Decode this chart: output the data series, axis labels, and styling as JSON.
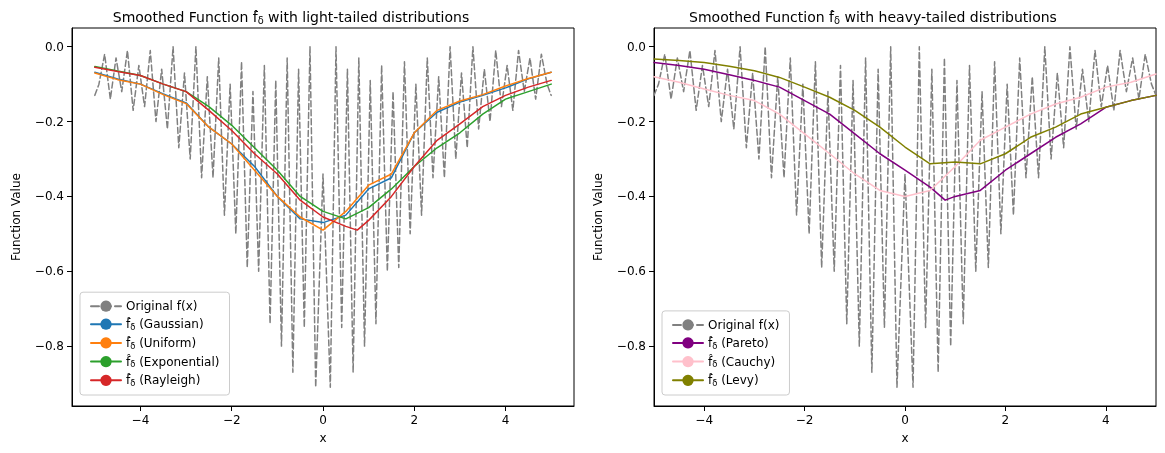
{
  "chart_data": [
    {
      "type": "line",
      "title": "Smoothed Function f̂$_{δ}$ with light-tailed distributions",
      "xlabel": "x",
      "ylabel": "Function Value",
      "xlim": [
        -5.5,
        5.5
      ],
      "ylim": [
        -0.96,
        0.05
      ],
      "xticks": [
        {
          "value": -4,
          "label": "−4"
        },
        {
          "value": -2,
          "label": "−2"
        },
        {
          "value": 0,
          "label": "0"
        },
        {
          "value": 2,
          "label": "2"
        },
        {
          "value": 4,
          "label": "4"
        }
      ],
      "yticks": [
        {
          "value": -0.8,
          "label": "−0.8"
        },
        {
          "value": -0.6,
          "label": "−0.6"
        },
        {
          "value": -0.4,
          "label": "−0.4"
        },
        {
          "value": -0.2,
          "label": "−0.2"
        },
        {
          "value": 0,
          "label": "0.0"
        }
      ],
      "legend": "bottom left",
      "series": [
        {
          "name": "Original f(x)",
          "color": "#808080",
          "line_style": "dashed",
          "x": [
            -5.0,
            -4.91,
            -4.785,
            -4.66,
            -4.535,
            -4.41,
            -4.285,
            -4.16,
            -4.035,
            -3.91,
            -3.785,
            -3.66,
            -3.535,
            -3.41,
            -3.285,
            -3.16,
            -3.035,
            -2.91,
            -2.785,
            -2.66,
            -2.535,
            -2.41,
            -2.285,
            -2.16,
            -2.035,
            -1.91,
            -1.785,
            -1.66,
            -1.535,
            -1.41,
            -1.285,
            -1.16,
            -1.035,
            -0.91,
            -0.785,
            -0.66,
            -0.535,
            -0.41,
            -0.285,
            -0.16,
            0,
            0.16,
            0.285,
            0.41,
            0.535,
            0.66,
            0.785,
            0.91,
            1.035,
            1.16,
            1.285,
            1.41,
            1.535,
            1.66,
            1.785,
            1.91,
            2.035,
            2.16,
            2.285,
            2.41,
            2.535,
            2.66,
            2.785,
            2.91,
            3.035,
            3.16,
            3.285,
            3.41,
            3.535,
            3.66,
            3.785,
            3.91,
            4.035,
            4.16,
            4.285,
            4.41,
            4.535,
            4.66,
            4.785,
            4.91,
            5.0
          ],
          "values": [
            -0.13,
            -0.1,
            -0.02,
            -0.14,
            -0.03,
            -0.12,
            -0.01,
            -0.17,
            -0.05,
            -0.16,
            -0.01,
            -0.2,
            -0.06,
            -0.22,
            0,
            -0.27,
            -0.07,
            -0.3,
            0,
            -0.35,
            -0.08,
            -0.35,
            -0.03,
            -0.45,
            -0.1,
            -0.5,
            -0.04,
            -0.59,
            -0.12,
            -0.6,
            -0.05,
            -0.74,
            -0.09,
            -0.8,
            -0.03,
            -0.87,
            -0.06,
            -0.75,
            0,
            -0.91,
            -0.34,
            -0.91,
            0,
            -0.75,
            -0.06,
            -0.87,
            -0.03,
            -0.8,
            -0.09,
            -0.74,
            -0.05,
            -0.6,
            -0.12,
            -0.59,
            -0.04,
            -0.5,
            -0.1,
            -0.45,
            -0.03,
            -0.35,
            -0.08,
            -0.35,
            0,
            -0.3,
            -0.07,
            -0.27,
            0,
            -0.22,
            -0.06,
            -0.2,
            -0.01,
            -0.16,
            -0.05,
            -0.17,
            -0.01,
            -0.12,
            -0.03,
            -0.14,
            -0.02,
            -0.1,
            -0.13
          ]
        },
        {
          "name": "f̂$_{δ}$ (Gaussian)",
          "color": "#1f77b4",
          "x": [
            -5,
            -4.5,
            -4,
            -3.5,
            -3,
            -2.5,
            -2,
            -1.5,
            -1,
            -0.5,
            0,
            0.5,
            1,
            1.5,
            2,
            2.5,
            3,
            3.5,
            4,
            4.5,
            5
          ],
          "values": [
            -0.068,
            -0.086,
            -0.1,
            -0.126,
            -0.15,
            -0.215,
            -0.26,
            -0.32,
            -0.4,
            -0.46,
            -0.47,
            -0.45,
            -0.38,
            -0.35,
            -0.23,
            -0.175,
            -0.148,
            -0.13,
            -0.11,
            -0.086,
            -0.068
          ]
        },
        {
          "name": "f̂$_{δ}$ (Uniform)",
          "color": "#ff7f0e",
          "x": [
            -5,
            -4.5,
            -4,
            -3.5,
            -3,
            -2.5,
            -2,
            -1.5,
            -1,
            -0.5,
            0,
            0.5,
            1,
            1.5,
            2,
            2.5,
            3,
            3.5,
            4,
            4.5,
            5
          ],
          "values": [
            -0.07,
            -0.088,
            -0.1,
            -0.128,
            -0.152,
            -0.215,
            -0.26,
            -0.33,
            -0.4,
            -0.455,
            -0.49,
            -0.44,
            -0.37,
            -0.34,
            -0.23,
            -0.17,
            -0.145,
            -0.128,
            -0.105,
            -0.085,
            -0.068
          ]
        },
        {
          "name": "f̂$_{δ}$ (Exponential)",
          "color": "#2ca02c",
          "x": [
            -5,
            -4.5,
            -4,
            -3.5,
            -3,
            -2.5,
            -2,
            -1.5,
            -1,
            -0.5,
            0,
            0.25,
            0.5,
            1,
            1.5,
            2,
            2.5,
            3,
            3.5,
            4,
            4.5,
            5
          ],
          "values": [
            -0.053,
            -0.065,
            -0.077,
            -0.1,
            -0.12,
            -0.16,
            -0.21,
            -0.27,
            -0.33,
            -0.4,
            -0.44,
            -0.45,
            -0.46,
            -0.43,
            -0.38,
            -0.32,
            -0.27,
            -0.23,
            -0.18,
            -0.14,
            -0.12,
            -0.1
          ]
        },
        {
          "name": "f̂$_{δ}$ (Rayleigh)",
          "color": "#d62728",
          "x": [
            -5,
            -4.5,
            -4,
            -3.5,
            -3,
            -2.5,
            -2,
            -1.5,
            -1,
            -0.5,
            0,
            0.5,
            0.75,
            1,
            1.5,
            2,
            2.5,
            3,
            3.5,
            4,
            4.5,
            5
          ],
          "values": [
            -0.055,
            -0.066,
            -0.077,
            -0.1,
            -0.12,
            -0.17,
            -0.224,
            -0.286,
            -0.34,
            -0.41,
            -0.455,
            -0.48,
            -0.49,
            -0.464,
            -0.4,
            -0.32,
            -0.25,
            -0.206,
            -0.16,
            -0.13,
            -0.108,
            -0.09
          ]
        }
      ]
    },
    {
      "type": "line",
      "title": "Smoothed Function f̂$_{δ}$ with heavy-tailed distributions",
      "xlabel": "x",
      "ylabel": "Function Value",
      "xlim": [
        -5,
        5
      ],
      "ylim": [
        -0.96,
        0.05
      ],
      "xticks": [
        {
          "value": -4,
          "label": "−4"
        },
        {
          "value": -2,
          "label": "−2"
        },
        {
          "value": 0,
          "label": "0"
        },
        {
          "value": 2,
          "label": "2"
        },
        {
          "value": 4,
          "label": "4"
        }
      ],
      "yticks": [
        {
          "value": -0.8,
          "label": "−0.8"
        },
        {
          "value": -0.6,
          "label": "−0.6"
        },
        {
          "value": -0.4,
          "label": "−0.4"
        },
        {
          "value": -0.2,
          "label": "−0.2"
        },
        {
          "value": 0,
          "label": "0.0"
        }
      ],
      "legend": "bottom left",
      "series": [
        {
          "name": "Original f(x)",
          "color": "#808080",
          "line_style": "dashed",
          "x": [
            -5.0,
            -4.91,
            -4.785,
            -4.66,
            -4.535,
            -4.41,
            -4.285,
            -4.16,
            -4.035,
            -3.91,
            -3.785,
            -3.66,
            -3.535,
            -3.41,
            -3.285,
            -3.16,
            -3.035,
            -2.91,
            -2.785,
            -2.66,
            -2.535,
            -2.41,
            -2.285,
            -2.16,
            -2.035,
            -1.91,
            -1.785,
            -1.66,
            -1.535,
            -1.41,
            -1.285,
            -1.16,
            -1.035,
            -0.91,
            -0.785,
            -0.66,
            -0.535,
            -0.41,
            -0.285,
            -0.16,
            0,
            0.16,
            0.285,
            0.41,
            0.535,
            0.66,
            0.785,
            0.91,
            1.035,
            1.16,
            1.285,
            1.41,
            1.535,
            1.66,
            1.785,
            1.91,
            2.035,
            2.16,
            2.285,
            2.41,
            2.535,
            2.66,
            2.785,
            2.91,
            3.035,
            3.16,
            3.285,
            3.41,
            3.535,
            3.66,
            3.785,
            3.91,
            4.035,
            4.16,
            4.285,
            4.41,
            4.535,
            4.66,
            4.785,
            4.91,
            5.0
          ],
          "values": [
            -0.13,
            -0.1,
            -0.02,
            -0.14,
            -0.03,
            -0.12,
            -0.01,
            -0.17,
            -0.05,
            -0.16,
            -0.01,
            -0.2,
            -0.06,
            -0.22,
            0,
            -0.27,
            -0.07,
            -0.3,
            0,
            -0.35,
            -0.08,
            -0.35,
            -0.03,
            -0.45,
            -0.1,
            -0.5,
            -0.04,
            -0.59,
            -0.12,
            -0.6,
            -0.05,
            -0.74,
            -0.09,
            -0.8,
            -0.03,
            -0.87,
            -0.06,
            -0.75,
            0,
            -0.91,
            -0.34,
            -0.91,
            0,
            -0.75,
            -0.06,
            -0.87,
            -0.03,
            -0.8,
            -0.09,
            -0.74,
            -0.05,
            -0.6,
            -0.12,
            -0.59,
            -0.04,
            -0.5,
            -0.1,
            -0.45,
            -0.03,
            -0.35,
            -0.08,
            -0.35,
            0,
            -0.3,
            -0.07,
            -0.27,
            0,
            -0.22,
            -0.06,
            -0.2,
            -0.01,
            -0.16,
            -0.05,
            -0.17,
            -0.01,
            -0.12,
            -0.03,
            -0.14,
            -0.02,
            -0.1,
            -0.13
          ]
        },
        {
          "name": "f̂$_{δ}$ (Pareto)",
          "color": "#800080",
          "x": [
            -5,
            -4.5,
            -4,
            -3.5,
            -3,
            -2.5,
            -2,
            -1.5,
            -1,
            -0.5,
            0,
            0.5,
            0.8,
            1,
            1.5,
            2,
            2.5,
            3,
            3.5,
            4,
            4.5,
            5
          ],
          "values": [
            -0.042,
            -0.05,
            -0.06,
            -0.075,
            -0.09,
            -0.108,
            -0.144,
            -0.18,
            -0.233,
            -0.286,
            -0.33,
            -0.375,
            -0.41,
            -0.4,
            -0.384,
            -0.33,
            -0.286,
            -0.242,
            -0.206,
            -0.162,
            -0.144,
            -0.13
          ]
        },
        {
          "name": "f̂$_{δ}$ (Cauchy)",
          "color": "#ffc0cb",
          "x": [
            -5,
            -4.5,
            -4,
            -3.5,
            -3,
            -2.5,
            -2,
            -1.5,
            -1,
            -0.5,
            0,
            0.5,
            1,
            1.5,
            2,
            2.5,
            3,
            3.5,
            4,
            4.5,
            5
          ],
          "values": [
            -0.08,
            -0.095,
            -0.113,
            -0.13,
            -0.144,
            -0.18,
            -0.233,
            -0.286,
            -0.34,
            -0.384,
            -0.4,
            -0.384,
            -0.32,
            -0.25,
            -0.215,
            -0.18,
            -0.153,
            -0.135,
            -0.108,
            -0.095,
            -0.073
          ]
        },
        {
          "name": "f̂$_{δ}$ (Levy)",
          "color": "#808000",
          "x": [
            -5,
            -4.5,
            -4,
            -3.5,
            -3,
            -2.5,
            -2,
            -1.5,
            -1,
            -0.5,
            0,
            0.5,
            1,
            1.5,
            2,
            2.5,
            3,
            3.5,
            4,
            4.5,
            5
          ],
          "values": [
            -0.033,
            -0.037,
            -0.042,
            -0.052,
            -0.064,
            -0.082,
            -0.108,
            -0.135,
            -0.17,
            -0.215,
            -0.268,
            -0.313,
            -0.308,
            -0.313,
            -0.286,
            -0.242,
            -0.215,
            -0.18,
            -0.162,
            -0.144,
            -0.13
          ]
        }
      ]
    }
  ]
}
